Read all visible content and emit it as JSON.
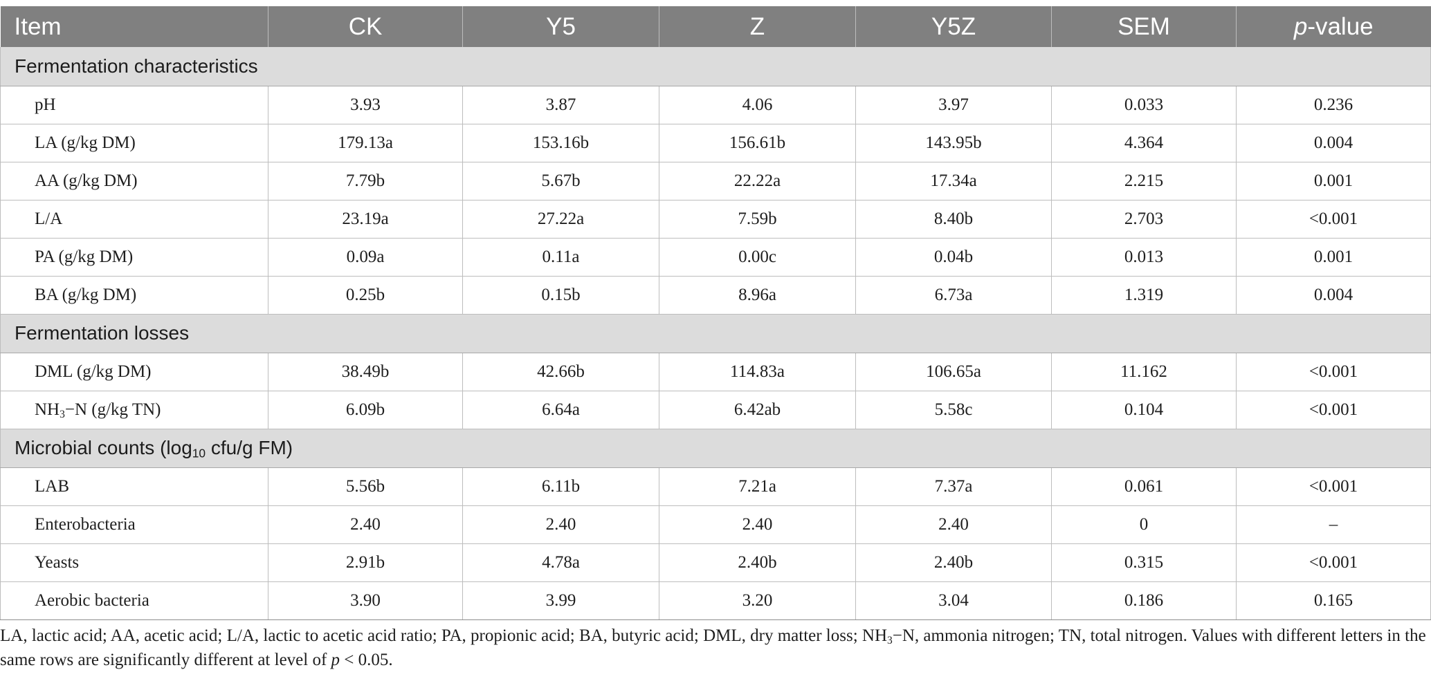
{
  "columns": [
    "Item",
    "CK",
    "Y5",
    "Z",
    "Y5Z",
    "SEM"
  ],
  "pvalue_header": {
    "italic": "p",
    "rest": "-value"
  },
  "sections": [
    {
      "title": "Fermentation characteristics",
      "rows": [
        {
          "item": "pH",
          "values": [
            "3.93",
            "3.87",
            "4.06",
            "3.97",
            "0.033",
            "0.236"
          ]
        },
        {
          "item": "LA (g/kg DM)",
          "values": [
            "179.13a",
            "153.16b",
            "156.61b",
            "143.95b",
            "4.364",
            "0.004"
          ]
        },
        {
          "item": "AA (g/kg DM)",
          "values": [
            "7.79b",
            "5.67b",
            "22.22a",
            "17.34a",
            "2.215",
            "0.001"
          ]
        },
        {
          "item": "L/A",
          "values": [
            "23.19a",
            "27.22a",
            "7.59b",
            "8.40b",
            "2.703",
            "<0.001"
          ]
        },
        {
          "item": "PA (g/kg DM)",
          "values": [
            "0.09a",
            "0.11a",
            "0.00c",
            "0.04b",
            "0.013",
            "0.001"
          ]
        },
        {
          "item": "BA (g/kg DM)",
          "values": [
            "0.25b",
            "0.15b",
            "8.96a",
            "6.73a",
            "1.319",
            "0.004"
          ]
        }
      ]
    },
    {
      "title": "Fermentation losses",
      "rows": [
        {
          "item": "DML (g/kg DM)",
          "values": [
            "38.49b",
            "42.66b",
            "114.83a",
            "106.65a",
            "11.162",
            "<0.001"
          ]
        },
        {
          "item": "NH3−N (g/kg TN)",
          "values": [
            "6.09b",
            "6.64a",
            "6.42ab",
            "5.58c",
            "0.104",
            "<0.001"
          ]
        }
      ]
    },
    {
      "title_parts": {
        "a": "Microbial counts (log",
        "sub": "10",
        "b": " cfu/g FM)"
      },
      "rows": [
        {
          "item": "LAB",
          "values": [
            "5.56b",
            "6.11b",
            "7.21a",
            "7.37a",
            "0.061",
            "<0.001"
          ]
        },
        {
          "item": "Enterobacteria",
          "values": [
            "2.40",
            "2.40",
            "2.40",
            "2.40",
            "0",
            "–"
          ]
        },
        {
          "item": "Yeasts",
          "values": [
            "2.91b",
            "4.78a",
            "2.40b",
            "2.40b",
            "0.315",
            "<0.001"
          ]
        },
        {
          "item": "Aerobic bacteria",
          "values": [
            "3.90",
            "3.99",
            "3.20",
            "3.04",
            "0.186",
            "0.165"
          ]
        }
      ]
    }
  ],
  "footnote": {
    "part1": "LA, lactic acid; AA, acetic acid; L/A, lactic to acetic acid ratio; PA, propionic acid; BA, butyric acid; DML, dry matter loss; NH",
    "sub": "3",
    "part2": "−N, ammonia nitrogen; TN, total nitrogen. Values with different letters in the same rows are significantly different at level of ",
    "p": "p",
    "part3": " < 0.05."
  }
}
